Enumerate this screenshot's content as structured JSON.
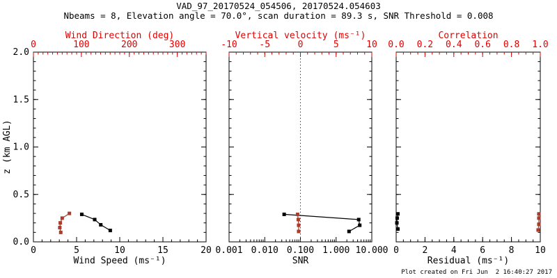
{
  "title": "VAD_97_20170524_054506, 20170524.054603",
  "subtitle": "Nbeams = 8, Elevation angle = 70.0°, scan duration = 89.3 s, SNR Threshold = 0.008",
  "footer": "Plot created on Fri Jun  2 16:40:27 2017",
  "colors": {
    "axis_red": "#e00000",
    "data_red": "#a93c2b",
    "black": "#000000"
  },
  "left_axis": {
    "title": "z (km AGL)",
    "min": 0,
    "max": 2.0,
    "major": [
      0,
      0.5,
      1.0,
      1.5,
      2.0
    ],
    "labels": [
      "0.0",
      "0.5",
      "1.0",
      "1.5",
      "2.0"
    ],
    "minor_step": 0.1
  },
  "chart_data": [
    {
      "name": "wind-speed-direction",
      "type": "line",
      "bottom_axis": {
        "title": "Wind Speed (ms⁻¹)",
        "scale": "linear",
        "min": 0,
        "max": 20,
        "major": [
          0,
          5,
          10,
          15,
          20
        ],
        "labels": [
          "0",
          "5",
          "10",
          "15",
          "20"
        ],
        "minor_step": 1
      },
      "top_axis": {
        "title": "Wind Direction (deg)",
        "scale": "linear",
        "min": 0,
        "max": 360,
        "major": [
          0,
          100,
          200,
          300
        ],
        "labels": [
          "0",
          "100",
          "200",
          "300"
        ],
        "minor_step": 10
      },
      "series": [
        {
          "name": "wind-speed",
          "axis": "bottom",
          "color_key": "black",
          "points": [
            [
              5.6,
              0.29
            ],
            [
              7.1,
              0.235
            ],
            [
              7.8,
              0.18
            ],
            [
              8.9,
              0.12
            ]
          ]
        },
        {
          "name": "wind-direction",
          "axis": "top",
          "color_key": "data_red",
          "points": [
            [
              75,
              0.3
            ],
            [
              60,
              0.25
            ],
            [
              56,
              0.2
            ],
            [
              55,
              0.15
            ],
            [
              57,
              0.1
            ]
          ]
        }
      ]
    },
    {
      "name": "snr-vertical-velocity",
      "type": "line",
      "bottom_axis": {
        "title": "SNR",
        "scale": "log",
        "min": 0.001,
        "max": 10,
        "major": [
          0.001,
          0.01,
          0.1,
          1,
          10
        ],
        "labels": [
          "0.001",
          "0.010",
          "0.100",
          "1.000",
          "10.000"
        ]
      },
      "top_axis": {
        "title": "Vertical velocity (ms⁻¹)",
        "scale": "linear",
        "min": -10,
        "max": 10,
        "major": [
          -10,
          -5,
          0,
          5,
          10
        ],
        "labels": [
          "-10",
          "-5",
          "0",
          "5",
          "10"
        ],
        "minor_step": 1
      },
      "ref_line": {
        "axis": "top",
        "value": 0,
        "style": "dotted",
        "color_key": "axis_red"
      },
      "series": [
        {
          "name": "snr",
          "axis": "bottom",
          "color_key": "black",
          "points": [
            [
              0.035,
              0.29
            ],
            [
              4.3,
              0.235
            ],
            [
              4.6,
              0.175
            ],
            [
              2.3,
              0.11
            ]
          ]
        },
        {
          "name": "vertical-velocity",
          "axis": "top",
          "color_key": "data_red",
          "points": [
            [
              -0.4,
              0.29
            ],
            [
              -0.3,
              0.235
            ],
            [
              -0.25,
              0.175
            ],
            [
              -0.25,
              0.11
            ]
          ]
        }
      ]
    },
    {
      "name": "residual-correlation",
      "type": "line",
      "bottom_axis": {
        "title": "Residual (ms⁻¹)",
        "scale": "linear",
        "min": 0,
        "max": 10,
        "major": [
          0,
          2,
          4,
          6,
          8,
          10
        ],
        "labels": [
          "0",
          "2",
          "4",
          "6",
          "8",
          "10"
        ],
        "minor_step": 0.5
      },
      "top_axis": {
        "title": "Correlation",
        "scale": "linear",
        "min": 0,
        "max": 1,
        "major": [
          0,
          0.2,
          0.4,
          0.6,
          0.8,
          1.0
        ],
        "labels": [
          "0.0",
          "0.2",
          "0.4",
          "0.6",
          "0.8",
          "1.0"
        ],
        "minor_step": 0.05
      },
      "series": [
        {
          "name": "residual",
          "axis": "bottom",
          "color_key": "black",
          "points": [
            [
              0.12,
              0.295
            ],
            [
              0.07,
              0.25
            ],
            [
              0.05,
              0.2
            ],
            [
              0.12,
              0.135
            ]
          ]
        },
        {
          "name": "correlation",
          "axis": "top",
          "color_key": "data_red",
          "points": [
            [
              0.99,
              0.295
            ],
            [
              0.99,
              0.25
            ],
            [
              0.99,
              0.185
            ],
            [
              0.985,
              0.125
            ]
          ]
        }
      ]
    }
  ]
}
